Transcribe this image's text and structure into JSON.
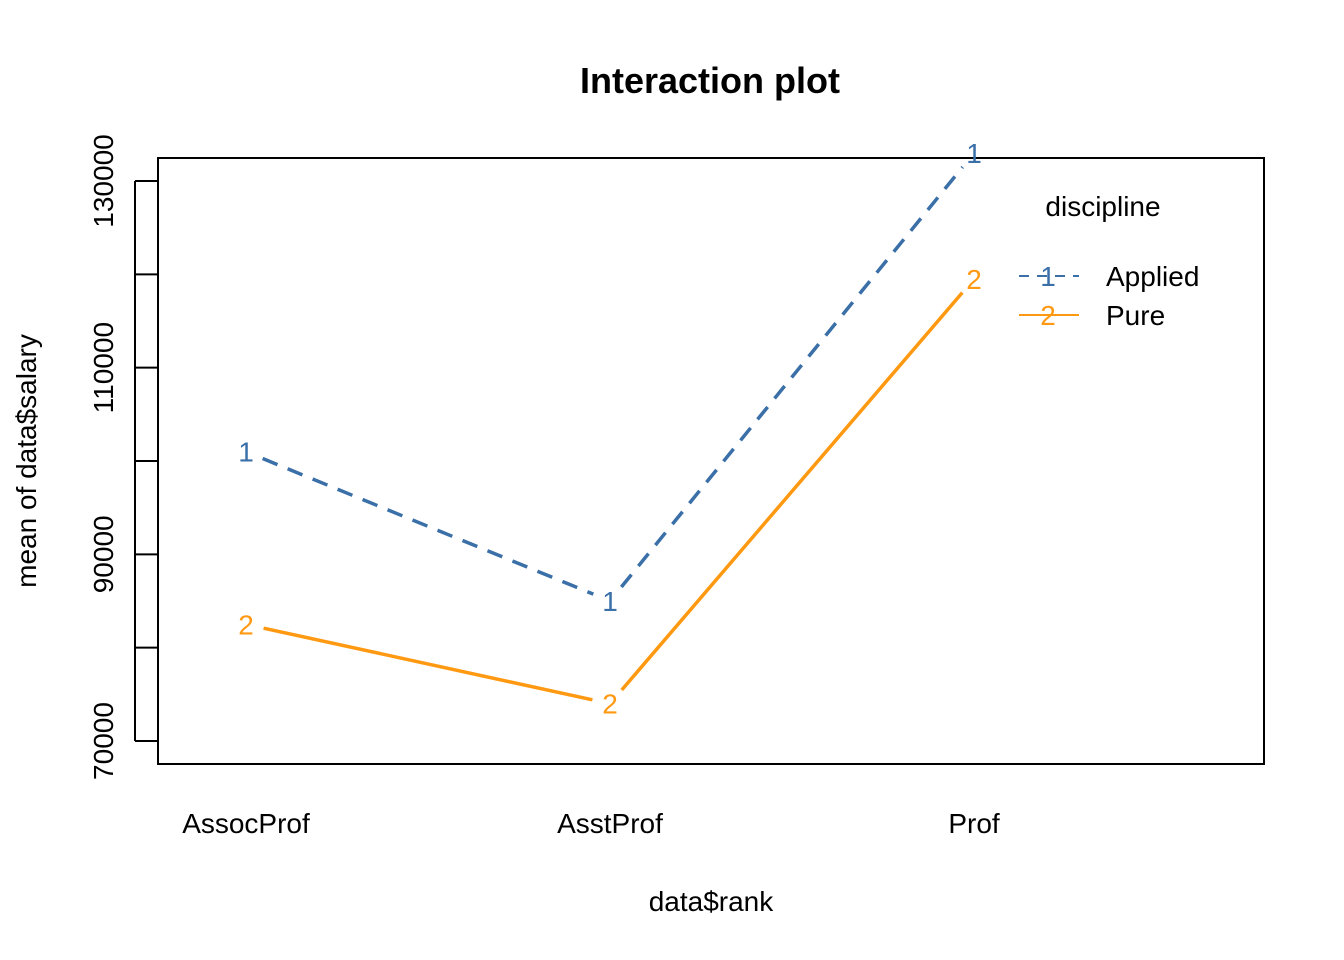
{
  "chart_data": {
    "type": "line",
    "title": "Interaction plot",
    "xlabel": "data$rank",
    "ylabel": "mean of  data$salary",
    "categories": [
      "AssocProf",
      "AsstProf",
      "Prof"
    ],
    "y_ticks": [
      70000,
      90000,
      110000,
      130000
    ],
    "ylim": [
      65000,
      134000
    ],
    "series": [
      {
        "name": "Applied",
        "symbol": "1",
        "color": "#3A6FA8",
        "dash": "dashed",
        "values": [
          101000,
          85000,
          133000
        ]
      },
      {
        "name": "Pure",
        "symbol": "2",
        "color": "#FF9912",
        "dash": "solid",
        "values": [
          82500,
          74000,
          119500
        ]
      }
    ],
    "legend": {
      "title": "discipline",
      "placement": "top-right"
    },
    "grid": false
  }
}
